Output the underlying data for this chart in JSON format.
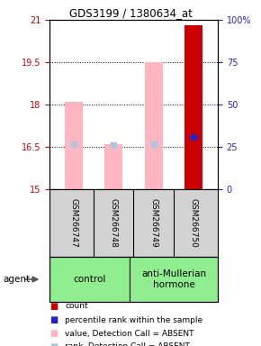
{
  "title": "GDS3199 / 1380634_at",
  "samples": [
    "GSM266747",
    "GSM266748",
    "GSM266749",
    "GSM266750"
  ],
  "bar_bottom": 15,
  "ylim_min": 15,
  "ylim_max": 21,
  "yticks_left": [
    15,
    16.5,
    18,
    19.5,
    21
  ],
  "ytick_labels_left": [
    "15",
    "16.5",
    "18",
    "19.5",
    "21"
  ],
  "yticks_right_pct": [
    0,
    25,
    50,
    75,
    100
  ],
  "ytick_labels_right": [
    "0",
    "25",
    "50",
    "75",
    "100%"
  ],
  "value_bars": [
    18.1,
    16.6,
    19.5,
    20.8
  ],
  "value_bar_colors": [
    "#ffb6c1",
    "#ffb6c1",
    "#ffb6c1",
    "#cc0000"
  ],
  "rank_values": [
    16.6,
    16.55,
    16.6,
    16.85
  ],
  "rank_colors": [
    "#b0c4de",
    "#b0c4de",
    "#b0c4de",
    "#2222cc"
  ],
  "control_group_label": "control",
  "treatment_group_label": "anti-Mullerian\nhormone",
  "agent_label": "agent",
  "legend_items": [
    {
      "color": "#cc0000",
      "label": "count"
    },
    {
      "color": "#2222cc",
      "label": "percentile rank within the sample"
    },
    {
      "color": "#ffb6c1",
      "label": "value, Detection Call = ABSENT"
    },
    {
      "color": "#b0c4de",
      "label": "rank, Detection Call = ABSENT"
    }
  ],
  "left_axis_color": "#cc0000",
  "right_axis_color": "#2222cc",
  "background_color": "#ffffff",
  "sample_box_color": "#d3d3d3",
  "group_box_color": "#90ee90"
}
